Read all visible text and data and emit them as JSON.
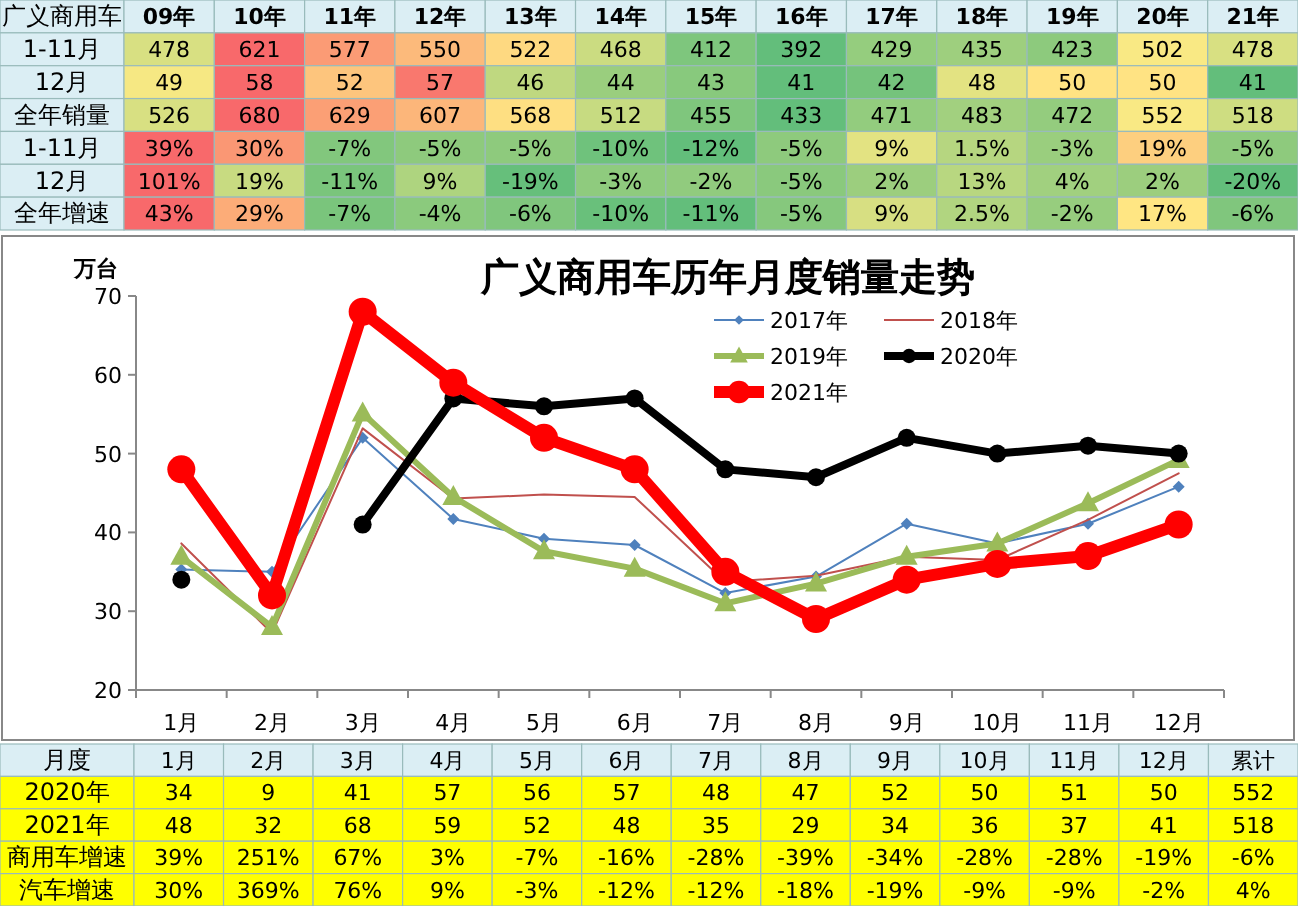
{
  "chart_data": [
    {
      "type": "heatmap",
      "title": "广义商用车",
      "categories": [
        "09年",
        "10年",
        "11年",
        "12年",
        "13年",
        "14年",
        "15年",
        "16年",
        "17年",
        "18年",
        "19年",
        "20年",
        "21年"
      ],
      "y_categories": [
        "1-11月",
        "12月",
        "全年销量",
        "1-11月",
        "12月",
        "全年增速"
      ],
      "cells": [
        [
          478,
          621,
          577,
          550,
          522,
          468,
          412,
          392,
          429,
          435,
          423,
          502,
          478
        ],
        [
          49,
          58,
          52,
          57,
          46,
          44,
          43,
          41,
          42,
          48,
          50,
          50,
          41
        ],
        [
          526,
          680,
          629,
          607,
          568,
          512,
          455,
          433,
          471,
          483,
          472,
          552,
          518
        ],
        [
          39,
          30,
          -7,
          -5,
          -5,
          -10,
          -12,
          -5,
          9,
          1.5,
          -3,
          19,
          -5
        ],
        [
          101,
          19,
          -11,
          9,
          -19,
          -3,
          -2,
          -5,
          2,
          13,
          4,
          2,
          -20
        ],
        [
          43,
          29,
          -7,
          -4,
          -6,
          -10,
          -11,
          -5,
          9,
          2.5,
          -2,
          17,
          -6
        ]
      ],
      "cell_labels": [
        [
          "478",
          "621",
          "577",
          "550",
          "522",
          "468",
          "412",
          "392",
          "429",
          "435",
          "423",
          "502",
          "478"
        ],
        [
          "49",
          "58",
          "52",
          "57",
          "46",
          "44",
          "43",
          "41",
          "42",
          "48",
          "50",
          "50",
          "41"
        ],
        [
          "526",
          "680",
          "629",
          "607",
          "568",
          "512",
          "455",
          "433",
          "471",
          "483",
          "472",
          "552",
          "518"
        ],
        [
          "39%",
          "30%",
          "-7%",
          "-5%",
          "-5%",
          "-10%",
          "-12%",
          "-5%",
          "9%",
          "1.5%",
          "-3%",
          "19%",
          "-5%"
        ],
        [
          "101%",
          "19%",
          "-11%",
          "9%",
          "-19%",
          "-3%",
          "-2%",
          "-5%",
          "2%",
          "13%",
          "4%",
          "2%",
          "-20%"
        ],
        [
          "43%",
          "29%",
          "-7%",
          "-4%",
          "-6%",
          "-10%",
          "-11%",
          "-5%",
          "9%",
          "2.5%",
          "-2%",
          "17%",
          "-6%"
        ]
      ]
    },
    {
      "type": "line",
      "title": "广义商用车历年月度销量走势",
      "ylabel": "万台",
      "categories": [
        "1月",
        "2月",
        "3月",
        "4月",
        "5月",
        "6月",
        "7月",
        "8月",
        "9月",
        "10月",
        "11月",
        "12月"
      ],
      "ylim": [
        20,
        70
      ],
      "yticks": [
        20,
        30,
        40,
        50,
        60,
        70
      ],
      "grid": false,
      "legend": "top right",
      "series": [
        {
          "name": "2017年",
          "color": "#4f81bd",
          "marker": "diamond",
          "values": [
            35.3,
            35,
            52,
            41.7,
            39.2,
            38.4,
            32.3,
            34.4,
            41.1,
            38.6,
            41.1,
            45.8
          ]
        },
        {
          "name": "2018年",
          "color": "#c0504d",
          "marker": "none",
          "values": [
            38.6,
            27.2,
            53.2,
            44.3,
            44.8,
            44.5,
            33.7,
            34.5,
            36.9,
            36.5,
            41.6,
            47.5
          ]
        },
        {
          "name": "2019年",
          "color": "#9bbb59",
          "marker": "triangle",
          "values": [
            36.9,
            28,
            55.1,
            44.5,
            37.6,
            35.4,
            31,
            33.5,
            36.9,
            38.6,
            43.7,
            49.2
          ]
        },
        {
          "name": "2020年",
          "color": "#000000",
          "marker": "circle",
          "values": [
            34,
            null,
            41,
            57,
            56,
            57,
            48,
            47,
            52,
            50,
            51,
            50
          ]
        },
        {
          "name": "2021年",
          "color": "#ff0000",
          "marker": "circle",
          "values": [
            48,
            32,
            68,
            59,
            52,
            48,
            35,
            29,
            34,
            36,
            37,
            41
          ]
        }
      ]
    },
    {
      "type": "heatmap",
      "title": "月度",
      "color": "#ffff00",
      "categories": [
        "1月",
        "2月",
        "3月",
        "4月",
        "5月",
        "6月",
        "7月",
        "8月",
        "9月",
        "10月",
        "11月",
        "12月",
        "累计"
      ],
      "y_categories": [
        "2020年",
        "2021年",
        "商用车增速",
        "汽车增速"
      ],
      "cells": [
        [
          34,
          9,
          41,
          57,
          56,
          57,
          48,
          47,
          52,
          50,
          51,
          50,
          552
        ],
        [
          48,
          32,
          68,
          59,
          52,
          48,
          35,
          29,
          34,
          36,
          37,
          41,
          518
        ],
        [
          39,
          251,
          67,
          3,
          -7,
          -16,
          -28,
          -39,
          -34,
          -28,
          -28,
          -19,
          -6
        ],
        [
          30,
          369,
          76,
          9,
          -3,
          -12,
          -12,
          -18,
          -19,
          -9,
          -9,
          -2,
          4
        ]
      ],
      "cell_labels": [
        [
          "34",
          "9",
          "41",
          "57",
          "56",
          "57",
          "48",
          "47",
          "52",
          "50",
          "51",
          "50",
          "552"
        ],
        [
          "48",
          "32",
          "68",
          "59",
          "52",
          "48",
          "35",
          "29",
          "34",
          "36",
          "37",
          "41",
          "518"
        ],
        [
          "39%",
          "251%",
          "67%",
          "3%",
          "-7%",
          "-16%",
          "-28%",
          "-39%",
          "-34%",
          "-28%",
          "-28%",
          "-19%",
          "-6%"
        ],
        [
          "30%",
          "369%",
          "76%",
          "9%",
          "-3%",
          "-12%",
          "-12%",
          "-18%",
          "-19%",
          "-9%",
          "-9%",
          "-2%",
          "4%"
        ]
      ]
    }
  ]
}
